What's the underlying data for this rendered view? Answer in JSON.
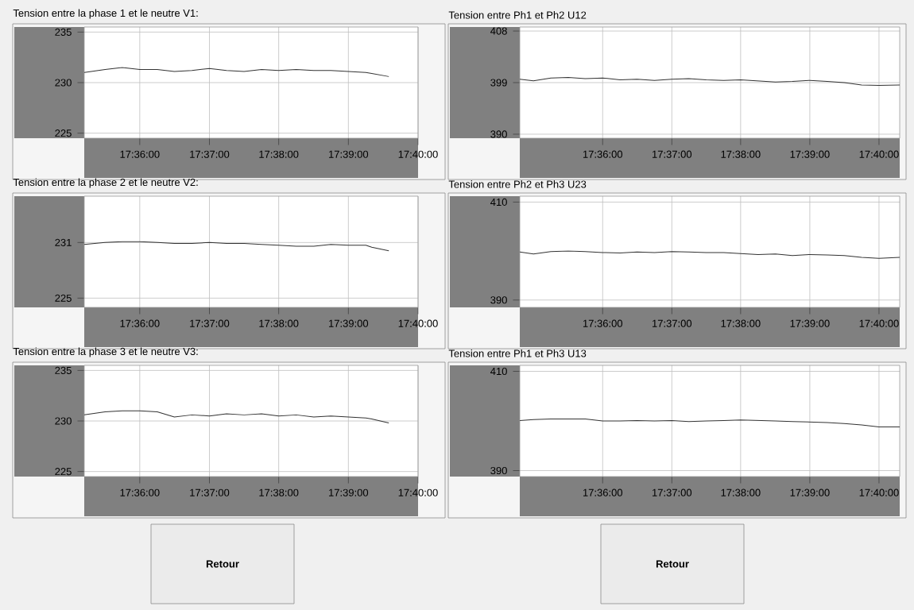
{
  "chart_data": [
    {
      "type": "line",
      "title": "Tension entre la phase 1 et le neutre V1:",
      "grid": true,
      "x": [
        17.5867,
        17.5917,
        17.5958,
        17.6,
        17.6042,
        17.6083,
        17.6125,
        17.6167,
        17.6208,
        17.625,
        17.6292,
        17.6333,
        17.6375,
        17.6417,
        17.6458,
        17.65,
        17.6542,
        17.6556,
        17.6597
      ],
      "series": [
        {
          "color": "#333333",
          "values": [
            231.0,
            231.3,
            231.5,
            231.3,
            231.3,
            231.1,
            231.2,
            231.4,
            231.2,
            231.1,
            231.3,
            231.2,
            231.3,
            231.2,
            231.2,
            231.1,
            231.0,
            230.9,
            230.6
          ]
        }
      ],
      "xlim": [
        17.5867,
        17.6667
      ],
      "xticks": [
        {
          "value": 17.6,
          "label": "17:36:00"
        },
        {
          "value": 17.6167,
          "label": "17:37:00"
        },
        {
          "value": 17.6333,
          "label": "17:38:00"
        },
        {
          "value": 17.65,
          "label": "17:39:00"
        },
        {
          "value": 17.6667,
          "label": "17:40:00"
        }
      ],
      "ylim": [
        224.5,
        235.5
      ],
      "yticks": [
        225,
        230,
        235
      ]
    },
    {
      "type": "line",
      "title": "Tension entre Ph1 et Ph2 U12",
      "grid": true,
      "x": [
        17.58,
        17.5833,
        17.5875,
        17.5917,
        17.5958,
        17.6,
        17.6042,
        17.6083,
        17.6125,
        17.6167,
        17.6208,
        17.625,
        17.6292,
        17.6333,
        17.6375,
        17.6417,
        17.6458,
        17.65,
        17.6542,
        17.6583,
        17.6625,
        17.6667,
        17.6717
      ],
      "series": [
        {
          "color": "#333333",
          "values": [
            399.6,
            399.3,
            399.8,
            399.9,
            399.7,
            399.8,
            399.5,
            399.6,
            399.4,
            399.6,
            399.7,
            399.5,
            399.4,
            399.5,
            399.3,
            399.1,
            399.2,
            399.4,
            399.2,
            399.0,
            398.6,
            398.5,
            398.6
          ]
        }
      ],
      "xlim": [
        17.58,
        17.6717
      ],
      "xticks": [
        {
          "value": 17.6,
          "label": "17:36:00"
        },
        {
          "value": 17.6167,
          "label": "17:37:00"
        },
        {
          "value": 17.6333,
          "label": "17:38:00"
        },
        {
          "value": 17.65,
          "label": "17:39:00"
        },
        {
          "value": 17.6667,
          "label": "17:40:00"
        }
      ],
      "ylim": [
        389.3,
        408.7
      ],
      "yticks": [
        390,
        399,
        408
      ]
    },
    {
      "type": "line",
      "title": "Tension entre la phase 2 et le neutre V2:",
      "grid": true,
      "x": [
        17.5867,
        17.5917,
        17.5958,
        17.6,
        17.6042,
        17.6083,
        17.6125,
        17.6167,
        17.6208,
        17.625,
        17.6292,
        17.6333,
        17.6375,
        17.6417,
        17.6458,
        17.65,
        17.6542,
        17.6556,
        17.6597
      ],
      "series": [
        {
          "color": "#333333",
          "values": [
            230.8,
            231.0,
            231.1,
            231.1,
            231.0,
            230.9,
            230.9,
            231.0,
            230.9,
            230.9,
            230.8,
            230.7,
            230.6,
            230.6,
            230.8,
            230.7,
            230.7,
            230.5,
            230.1
          ]
        }
      ],
      "xlim": [
        17.5867,
        17.6667
      ],
      "xticks": [
        {
          "value": 17.6,
          "label": "17:36:00"
        },
        {
          "value": 17.6167,
          "label": "17:37:00"
        },
        {
          "value": 17.6333,
          "label": "17:38:00"
        },
        {
          "value": 17.65,
          "label": "17:39:00"
        },
        {
          "value": 17.6667,
          "label": "17:40:00"
        }
      ],
      "ylim": [
        224,
        236
      ],
      "yticks": [
        225,
        231
      ]
    },
    {
      "type": "line",
      "title": "Tension entre Ph2 et Ph3 U23",
      "grid": true,
      "x": [
        17.58,
        17.5833,
        17.5875,
        17.5917,
        17.5958,
        17.6,
        17.6042,
        17.6083,
        17.6125,
        17.6167,
        17.6208,
        17.625,
        17.6292,
        17.6333,
        17.6375,
        17.6417,
        17.6458,
        17.65,
        17.6542,
        17.6583,
        17.6625,
        17.6667,
        17.6717
      ],
      "series": [
        {
          "color": "#333333",
          "values": [
            399.8,
            399.4,
            399.9,
            400.0,
            399.9,
            399.7,
            399.6,
            399.8,
            399.7,
            399.9,
            399.8,
            399.7,
            399.7,
            399.5,
            399.3,
            399.4,
            399.1,
            399.3,
            399.2,
            399.1,
            398.7,
            398.5,
            398.7
          ]
        }
      ],
      "xlim": [
        17.58,
        17.6717
      ],
      "xticks": [
        {
          "value": 17.6,
          "label": "17:36:00"
        },
        {
          "value": 17.6167,
          "label": "17:37:00"
        },
        {
          "value": 17.6333,
          "label": "17:38:00"
        },
        {
          "value": 17.65,
          "label": "17:39:00"
        },
        {
          "value": 17.6667,
          "label": "17:40:00"
        }
      ],
      "ylim": [
        388.5,
        411.2
      ],
      "yticks": [
        390,
        410
      ]
    },
    {
      "type": "line",
      "title": "Tension entre la phase 3 et le neutre V3:",
      "grid": true,
      "x": [
        17.5867,
        17.5917,
        17.5958,
        17.6,
        17.6042,
        17.6083,
        17.6125,
        17.6167,
        17.6208,
        17.625,
        17.6292,
        17.6333,
        17.6375,
        17.6417,
        17.6458,
        17.65,
        17.6542,
        17.6556,
        17.6597
      ],
      "series": [
        {
          "color": "#333333",
          "values": [
            230.6,
            230.9,
            231.0,
            231.0,
            230.9,
            230.4,
            230.6,
            230.5,
            230.7,
            230.6,
            230.7,
            230.5,
            230.6,
            230.4,
            230.5,
            230.4,
            230.3,
            230.2,
            229.8
          ]
        }
      ],
      "xlim": [
        17.5867,
        17.6667
      ],
      "xticks": [
        {
          "value": 17.6,
          "label": "17:36:00"
        },
        {
          "value": 17.6167,
          "label": "17:37:00"
        },
        {
          "value": 17.6333,
          "label": "17:38:00"
        },
        {
          "value": 17.65,
          "label": "17:39:00"
        },
        {
          "value": 17.6667,
          "label": "17:40:00"
        }
      ],
      "ylim": [
        224.5,
        235.5
      ],
      "yticks": [
        225,
        230,
        235
      ]
    },
    {
      "type": "line",
      "title": "Tension entre Ph1 et Ph3 U13",
      "grid": true,
      "x": [
        17.58,
        17.5833,
        17.5875,
        17.5917,
        17.5958,
        17.6,
        17.6042,
        17.6083,
        17.6125,
        17.6167,
        17.6208,
        17.625,
        17.6292,
        17.6333,
        17.6375,
        17.6417,
        17.6458,
        17.65,
        17.6542,
        17.6583,
        17.6625,
        17.6667,
        17.6717
      ],
      "series": [
        {
          "color": "#333333",
          "values": [
            400.1,
            400.3,
            400.4,
            400.4,
            400.4,
            400.0,
            400.0,
            400.1,
            400.0,
            400.1,
            399.9,
            400.0,
            400.1,
            400.2,
            400.1,
            400.0,
            399.9,
            399.8,
            399.7,
            399.5,
            399.2,
            398.8,
            398.8
          ]
        }
      ],
      "xlim": [
        17.58,
        17.6717
      ],
      "xticks": [
        {
          "value": 17.6,
          "label": "17:36:00"
        },
        {
          "value": 17.6167,
          "label": "17:37:00"
        },
        {
          "value": 17.6333,
          "label": "17:38:00"
        },
        {
          "value": 17.65,
          "label": "17:39:00"
        },
        {
          "value": 17.6667,
          "label": "17:40:00"
        }
      ],
      "ylim": [
        388.8,
        411.2
      ],
      "yticks": [
        390,
        410
      ]
    },
    {
      "type": "other",
      "annotations": [
        "Retour",
        "Retour"
      ]
    }
  ]
}
